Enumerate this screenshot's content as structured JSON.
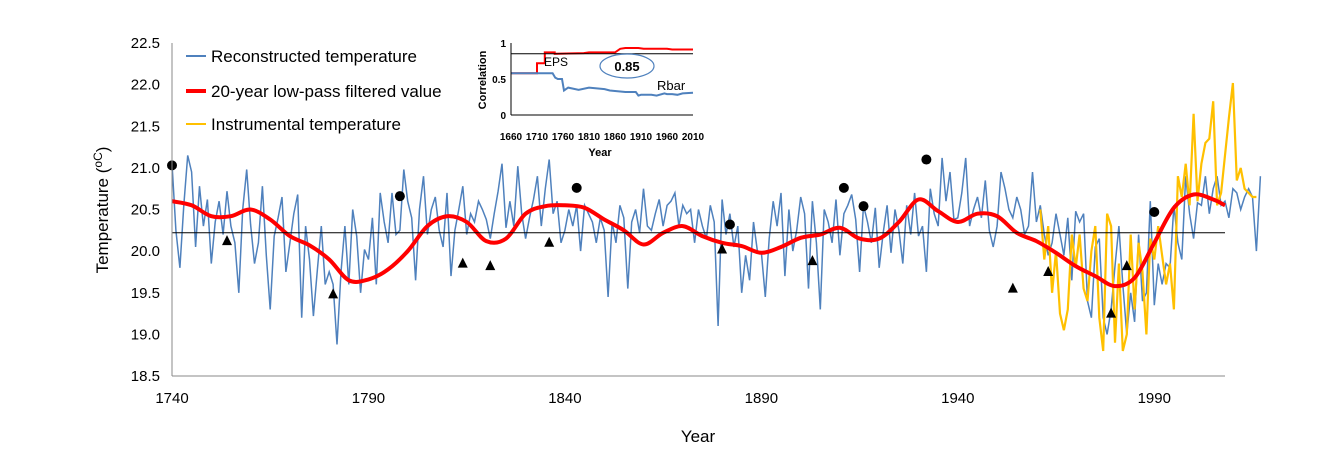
{
  "chart_data": [
    {
      "type": "line",
      "title": "",
      "xlabel": "Year",
      "ylabel": "Temperature (°C)",
      "ylabel_prefix": "Temperature (",
      "ylabel_unit": "oC",
      "ylabel_suffix": ")",
      "xlim": [
        1740,
        2008
      ],
      "ylim": [
        18.5,
        22.5
      ],
      "xticks": [
        1740,
        1790,
        1840,
        1890,
        1940,
        1990
      ],
      "yticks": [
        18.5,
        19.0,
        19.5,
        20.0,
        20.5,
        21.0,
        21.5,
        22.0,
        22.5
      ],
      "ytick_labels": [
        "18.5",
        "19.0",
        "19.5",
        "20.0",
        "20.5",
        "21.0",
        "21.5",
        "22.0",
        "22.5"
      ],
      "grid": false,
      "legend_position": "top-left",
      "mean_line": 20.22,
      "series": [
        {
          "name": "Reconstructed temperature",
          "color": "#4f81bd",
          "x_start": 1740,
          "values": [
            21.05,
            20.25,
            19.8,
            20.55,
            21.15,
            20.95,
            20.05,
            20.78,
            20.3,
            20.62,
            19.85,
            20.35,
            20.6,
            20.2,
            20.72,
            20.3,
            20.1,
            19.5,
            20.5,
            20.98,
            20.32,
            19.85,
            20.1,
            20.78,
            19.95,
            19.3,
            20.18,
            20.4,
            20.65,
            19.75,
            20.1,
            20.45,
            20.68,
            19.2,
            20.3,
            19.9,
            19.22,
            19.78,
            20.3,
            19.6,
            19.75,
            19.6,
            18.88,
            19.75,
            20.3,
            19.6,
            20.5,
            20.18,
            19.5,
            20.02,
            19.9,
            20.4,
            19.6,
            20.7,
            20.35,
            20.1,
            20.7,
            20.2,
            20.25,
            20.98,
            20.6,
            20.4,
            19.65,
            20.5,
            20.9,
            20.2,
            20.5,
            20.65,
            20.25,
            20.05,
            20.7,
            19.7,
            20.25,
            20.5,
            20.78,
            20.2,
            20.45,
            20.35,
            20.6,
            20.5,
            20.38,
            20.15,
            20.45,
            20.72,
            21.05,
            20.28,
            20.6,
            20.3,
            21.02,
            20.45,
            20.15,
            20.4,
            20.62,
            20.9,
            20.3,
            20.75,
            21.1,
            20.45,
            20.6,
            20.1,
            20.25,
            20.5,
            20.3,
            20.55,
            20.0,
            20.55,
            20.45,
            20.35,
            20.1,
            20.4,
            20.25,
            19.45,
            20.35,
            20.1,
            20.55,
            20.4,
            19.55,
            20.35,
            20.5,
            20.22,
            20.75,
            20.3,
            20.25,
            20.45,
            20.62,
            20.3,
            20.55,
            20.6,
            20.7,
            20.3,
            20.55,
            20.45,
            20.5,
            20.1,
            20.5,
            20.3,
            20.15,
            20.55,
            20.35,
            19.1,
            20.62,
            20.2,
            20.45,
            20.05,
            20.3,
            19.5,
            19.95,
            19.65,
            20.35,
            20.0,
            19.98,
            19.45,
            20.15,
            20.6,
            20.3,
            20.7,
            19.7,
            20.5,
            20.0,
            20.25,
            20.65,
            20.45,
            19.55,
            20.6,
            20.1,
            19.3,
            20.5,
            20.35,
            20.1,
            20.62,
            19.95,
            20.45,
            20.55,
            20.68,
            20.38,
            19.75,
            20.55,
            20.35,
            20.1,
            20.52,
            19.8,
            20.22,
            20.55,
            19.98,
            20.5,
            20.25,
            19.85,
            20.55,
            20.2,
            20.7,
            20.18,
            20.3,
            19.75,
            20.75,
            20.45,
            20.3,
            21.12,
            20.6,
            20.95,
            20.38,
            20.4,
            20.7,
            21.12,
            20.3,
            20.5,
            20.65,
            20.4,
            20.85,
            20.25,
            20.05,
            20.3,
            20.95,
            20.75,
            20.5,
            20.4,
            20.65,
            20.5,
            20.2,
            20.3,
            20.95,
            20.35,
            20.55,
            20.2,
            19.95,
            20.1,
            20.45,
            20.2,
            19.95,
            20.4,
            19.65,
            20.48,
            20.35,
            20.45,
            19.4,
            19.2,
            20.05,
            20.15,
            19.2,
            19.0,
            19.3,
            19.82,
            20.3,
            19.6,
            19.0,
            19.5,
            19.15,
            20.2,
            19.4,
            19.5,
            20.6,
            19.35,
            19.85,
            19.6,
            19.85,
            19.8,
            20.55,
            20.1,
            19.9,
            20.9,
            20.45,
            20.15,
            20.58,
            20.55,
            20.9,
            20.45,
            20.75,
            20.9,
            20.55,
            20.6,
            20.4,
            20.75,
            20.7,
            20.5,
            20.65,
            20.75,
            20.65,
            20.0,
            20.9
          ]
        },
        {
          "name": "20-year low-pass filtered value",
          "color": "#ff0000",
          "x": [
            1740,
            1745,
            1750,
            1755,
            1760,
            1765,
            1770,
            1775,
            1780,
            1785,
            1790,
            1795,
            1800,
            1805,
            1810,
            1815,
            1820,
            1825,
            1830,
            1835,
            1840,
            1845,
            1850,
            1855,
            1860,
            1865,
            1870,
            1875,
            1880,
            1885,
            1890,
            1895,
            1900,
            1905,
            1910,
            1915,
            1920,
            1925,
            1930,
            1935,
            1940,
            1945,
            1950,
            1955,
            1960,
            1965,
            1970,
            1975,
            1980,
            1985,
            1990,
            1995,
            2000,
            2005,
            2008
          ],
          "y": [
            20.6,
            20.55,
            20.42,
            20.42,
            20.5,
            20.38,
            20.18,
            20.07,
            19.9,
            19.65,
            19.66,
            19.78,
            20.0,
            20.3,
            20.42,
            20.35,
            20.12,
            20.15,
            20.45,
            20.54,
            20.55,
            20.52,
            20.38,
            20.25,
            20.08,
            20.22,
            20.3,
            20.18,
            20.1,
            20.06,
            19.98,
            20.05,
            20.16,
            20.2,
            20.28,
            20.15,
            20.15,
            20.35,
            20.62,
            20.48,
            20.35,
            20.45,
            20.42,
            20.22,
            20.12,
            19.98,
            19.82,
            19.7,
            19.58,
            19.68,
            20.1,
            20.52,
            20.68,
            20.62,
            20.55
          ]
        },
        {
          "name": "Instrumental temperature",
          "color": "#ffc000",
          "x_start": 1961,
          "values": [
            20.5,
            19.9,
            20.3,
            19.5,
            20.0,
            19.25,
            19.05,
            19.3,
            20.2,
            19.8,
            20.2,
            19.55,
            19.4,
            20.0,
            20.3,
            19.2,
            18.8,
            20.45,
            20.3,
            18.9,
            19.85,
            18.8,
            19.0,
            20.2,
            19.3,
            20.1,
            19.75,
            19.0,
            20.15,
            19.9,
            20.3,
            19.95,
            19.6,
            19.85,
            19.3,
            20.9,
            20.65,
            21.05,
            20.55,
            21.65,
            20.6,
            21.05,
            21.3,
            21.35,
            21.8,
            20.55,
            20.7,
            21.15,
            21.6,
            22.02,
            20.85,
            21.0,
            20.75,
            20.7,
            20.65,
            20.65
          ]
        }
      ],
      "markers": {
        "circles": [
          [
            1740,
            21.03
          ],
          [
            1798,
            20.66
          ],
          [
            1843,
            20.76
          ],
          [
            1882,
            20.32
          ],
          [
            1911,
            20.76
          ],
          [
            1916,
            20.54
          ],
          [
            1932,
            21.1
          ],
          [
            1990,
            20.47
          ]
        ],
        "triangles": [
          [
            1754,
            20.12
          ],
          [
            1781,
            19.48
          ],
          [
            1814,
            19.85
          ],
          [
            1821,
            19.82
          ],
          [
            1836,
            20.1
          ],
          [
            1880,
            20.02
          ],
          [
            1903,
            19.88
          ],
          [
            1954,
            19.55
          ],
          [
            1963,
            19.75
          ],
          [
            1979,
            19.25
          ],
          [
            1983,
            19.82
          ]
        ]
      }
    },
    {
      "type": "line",
      "title": "",
      "xlabel": "Year",
      "ylabel": "Correlation",
      "xlim": [
        1660,
        2010
      ],
      "ylim": [
        0,
        1
      ],
      "xtick_labels": [
        "1660",
        "1710",
        "1760",
        "1810",
        "1860",
        "1910",
        "1960",
        "2010"
      ],
      "ytick_labels": [
        "0",
        "0.5",
        "1"
      ],
      "reference_line": 0.85,
      "annotation": "0.85",
      "series": [
        {
          "name": "EPS",
          "color": "#ff0000",
          "x": [
            1660,
            1710,
            1710,
            1725,
            1725,
            1744,
            1744,
            1800,
            1810,
            1860,
            1870,
            1880,
            1905,
            1915,
            1960,
            1970,
            2010
          ],
          "y": [
            0.58,
            0.58,
            0.72,
            0.72,
            0.87,
            0.87,
            0.85,
            0.86,
            0.87,
            0.87,
            0.92,
            0.93,
            0.93,
            0.92,
            0.92,
            0.91,
            0.91
          ]
        },
        {
          "name": "Rbar",
          "color": "#4f81bd",
          "x": [
            1660,
            1740,
            1745,
            1750,
            1758,
            1762,
            1770,
            1790,
            1810,
            1840,
            1850,
            1880,
            1900,
            1905,
            1910,
            1930,
            1940,
            1955,
            1960,
            1970,
            1980,
            1990,
            2010
          ],
          "y": [
            0.58,
            0.58,
            0.52,
            0.5,
            0.5,
            0.34,
            0.38,
            0.35,
            0.38,
            0.36,
            0.34,
            0.32,
            0.32,
            0.27,
            0.28,
            0.28,
            0.27,
            0.3,
            0.29,
            0.29,
            0.28,
            0.3,
            0.31
          ]
        }
      ]
    }
  ]
}
